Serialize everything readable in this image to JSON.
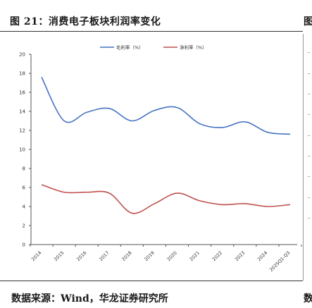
{
  "figure": {
    "title": "图 21：消费电子板块利润率变化",
    "next_title": "图",
    "source": "数据来源：Wind，华龙证券研究所",
    "next_source": "数"
  },
  "chart_data": {
    "type": "line",
    "title": "",
    "xlabel": "",
    "ylabel": "",
    "categories": [
      "2014",
      "2015",
      "2016",
      "2017",
      "2018",
      "2019",
      "2020",
      "2021",
      "2022",
      "2023",
      "2024",
      "2025Q1-Q3"
    ],
    "ylim": [
      0,
      20
    ],
    "yticks": [
      0,
      2,
      4,
      6,
      8,
      10,
      12,
      14,
      16,
      18,
      20
    ],
    "grid": false,
    "legend": "top-center",
    "series": [
      {
        "name": "毛利率（%）",
        "color": "#4472c4",
        "values": [
          17.6,
          13.0,
          13.9,
          14.3,
          13.0,
          14.1,
          14.4,
          12.7,
          12.3,
          12.9,
          11.8,
          11.6
        ]
      },
      {
        "name": "净利率（%）",
        "color": "#c0504d",
        "values": [
          6.3,
          5.5,
          5.5,
          5.4,
          3.3,
          4.3,
          5.4,
          4.6,
          4.2,
          4.3,
          4.0,
          4.2
        ]
      }
    ]
  }
}
